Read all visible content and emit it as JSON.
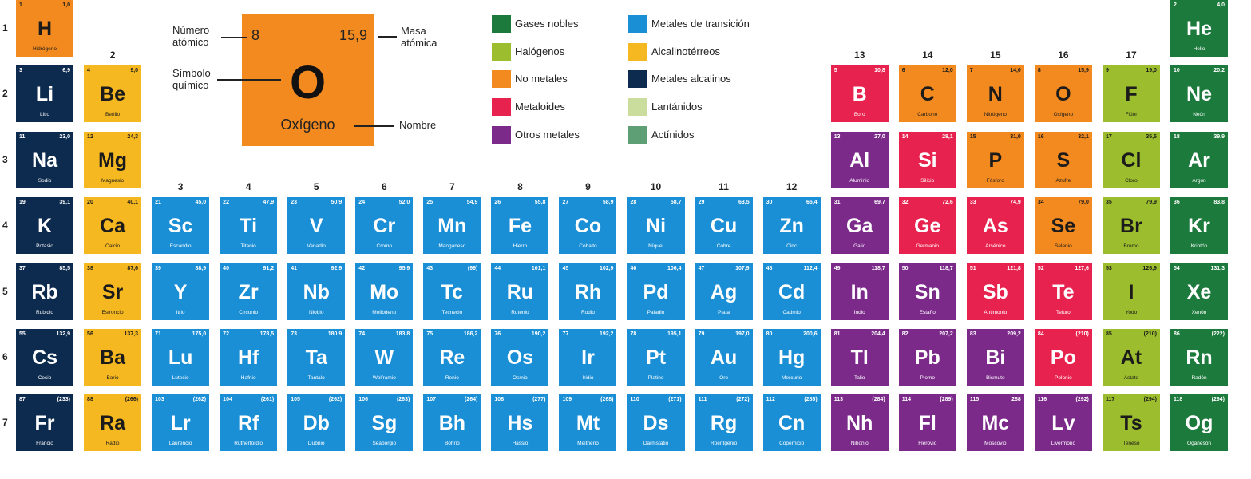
{
  "key": {
    "number": "8",
    "mass": "15,9",
    "symbol": "O",
    "name": "Oxígeno",
    "color": "#f28a20",
    "number_label": [
      "Número",
      "atómico"
    ],
    "symbol_label": [
      "Símbolo",
      "químico"
    ],
    "mass_label": [
      "Masa",
      "atómica"
    ],
    "name_label": "Nombre"
  },
  "legend": [
    {
      "name": "Gases nobles",
      "color": "#1b7a3c"
    },
    {
      "name": "Halógenos",
      "color": "#9cbd2e"
    },
    {
      "name": "No metales",
      "color": "#f28a20"
    },
    {
      "name": "Metaloides",
      "color": "#e8224e"
    },
    {
      "name": "Otros metales",
      "color": "#7b2a8a"
    },
    {
      "name": "Metales de transición",
      "color": "#1a8fd6"
    },
    {
      "name": "Alcalinotérreos",
      "color": "#f6b820"
    },
    {
      "name": "Metales alcalinos",
      "color": "#0d2b4f"
    },
    {
      "name": "Lantánidos",
      "color": "#cadd9c"
    },
    {
      "name": "Actínidos",
      "color": "#5e9f76"
    }
  ],
  "groups": [
    null,
    "2",
    "3",
    "4",
    "5",
    "6",
    "7",
    "8",
    "9",
    "10",
    "11",
    "12",
    "13",
    "14",
    "15",
    "16",
    "17",
    null
  ],
  "periods": [
    "1",
    "2",
    "3",
    "4",
    "5",
    "6",
    "7"
  ],
  "rows": [
    [
      {
        "number": 1,
        "mass": "1,0",
        "symbol": "H",
        "name": "Hidrógeno",
        "color": "#f28a20"
      },
      null,
      null,
      null,
      null,
      null,
      null,
      null,
      null,
      null,
      null,
      null,
      null,
      null,
      null,
      null,
      null,
      {
        "number": 2,
        "mass": "4,0",
        "symbol": "He",
        "name": "Helio",
        "color": "#1b7a3c"
      }
    ],
    [
      {
        "number": 3,
        "mass": "6,9",
        "symbol": "Li",
        "name": "Litio",
        "color": "#0d2b4f"
      },
      {
        "number": 4,
        "mass": "9,0",
        "symbol": "Be",
        "name": "Berilio",
        "color": "#f6b820"
      },
      null,
      null,
      null,
      null,
      null,
      null,
      null,
      null,
      null,
      null,
      {
        "number": 5,
        "mass": "10,8",
        "symbol": "B",
        "name": "Boro",
        "color": "#e8224e"
      },
      {
        "number": 6,
        "mass": "12,0",
        "symbol": "C",
        "name": "Carbono",
        "color": "#f28a20"
      },
      {
        "number": 7,
        "mass": "14,0",
        "symbol": "N",
        "name": "Nitrógeno",
        "color": "#f28a20"
      },
      {
        "number": 8,
        "mass": "15,9",
        "symbol": "O",
        "name": "Oxígeno",
        "color": "#f28a20"
      },
      {
        "number": 9,
        "mass": "19,0",
        "symbol": "F",
        "name": "Flúor",
        "color": "#9cbd2e"
      },
      {
        "number": 10,
        "mass": "20,2",
        "symbol": "Ne",
        "name": "Neón",
        "color": "#1b7a3c"
      }
    ],
    [
      {
        "number": 11,
        "mass": "23,0",
        "symbol": "Na",
        "name": "Sodio",
        "color": "#0d2b4f"
      },
      {
        "number": 12,
        "mass": "24,3",
        "symbol": "Mg",
        "name": "Magnesio",
        "color": "#f6b820"
      },
      null,
      null,
      null,
      null,
      null,
      null,
      null,
      null,
      null,
      null,
      {
        "number": 13,
        "mass": "27,0",
        "symbol": "Al",
        "name": "Aluminio",
        "color": "#7b2a8a"
      },
      {
        "number": 14,
        "mass": "28,1",
        "symbol": "Si",
        "name": "Silicio",
        "color": "#e8224e"
      },
      {
        "number": 15,
        "mass": "31,0",
        "symbol": "P",
        "name": "Fósforo",
        "color": "#f28a20"
      },
      {
        "number": 16,
        "mass": "32,1",
        "symbol": "S",
        "name": "Azufre",
        "color": "#f28a20"
      },
      {
        "number": 17,
        "mass": "35,5",
        "symbol": "Cl",
        "name": "Cloro",
        "color": "#9cbd2e"
      },
      {
        "number": 18,
        "mass": "39,9",
        "symbol": "Ar",
        "name": "Argón",
        "color": "#1b7a3c"
      }
    ],
    [
      {
        "number": 19,
        "mass": "39,1",
        "symbol": "K",
        "name": "Potasio",
        "color": "#0d2b4f"
      },
      {
        "number": 20,
        "mass": "40,1",
        "symbol": "Ca",
        "name": "Calcio",
        "color": "#f6b820"
      },
      {
        "number": 21,
        "mass": "45,0",
        "symbol": "Sc",
        "name": "Escandio",
        "color": "#1a8fd6"
      },
      {
        "number": 22,
        "mass": "47,9",
        "symbol": "Ti",
        "name": "Titanio",
        "color": "#1a8fd6"
      },
      {
        "number": 23,
        "mass": "50,9",
        "symbol": "V",
        "name": "Vanadio",
        "color": "#1a8fd6"
      },
      {
        "number": 24,
        "mass": "52,0",
        "symbol": "Cr",
        "name": "Cromo",
        "color": "#1a8fd6"
      },
      {
        "number": 25,
        "mass": "54,9",
        "symbol": "Mn",
        "name": "Manganeso",
        "color": "#1a8fd6"
      },
      {
        "number": 26,
        "mass": "55,8",
        "symbol": "Fe",
        "name": "Hierro",
        "color": "#1a8fd6"
      },
      {
        "number": 27,
        "mass": "58,9",
        "symbol": "Co",
        "name": "Cobalto",
        "color": "#1a8fd6"
      },
      {
        "number": 28,
        "mass": "58,7",
        "symbol": "Ni",
        "name": "Níquel",
        "color": "#1a8fd6"
      },
      {
        "number": 29,
        "mass": "63,5",
        "symbol": "Cu",
        "name": "Cobre",
        "color": "#1a8fd6"
      },
      {
        "number": 30,
        "mass": "65,4",
        "symbol": "Zn",
        "name": "Cinc",
        "color": "#1a8fd6"
      },
      {
        "number": 31,
        "mass": "69,7",
        "symbol": "Ga",
        "name": "Galio",
        "color": "#7b2a8a"
      },
      {
        "number": 32,
        "mass": "72,6",
        "symbol": "Ge",
        "name": "Germanio",
        "color": "#e8224e"
      },
      {
        "number": 33,
        "mass": "74,9",
        "symbol": "As",
        "name": "Arsénico",
        "color": "#e8224e"
      },
      {
        "number": 34,
        "mass": "79,0",
        "symbol": "Se",
        "name": "Selenio",
        "color": "#f28a20"
      },
      {
        "number": 35,
        "mass": "79,9",
        "symbol": "Br",
        "name": "Bromo",
        "color": "#9cbd2e"
      },
      {
        "number": 36,
        "mass": "83,8",
        "symbol": "Kr",
        "name": "Kriptón",
        "color": "#1b7a3c"
      }
    ],
    [
      {
        "number": 37,
        "mass": "85,5",
        "symbol": "Rb",
        "name": "Rubidio",
        "color": "#0d2b4f"
      },
      {
        "number": 38,
        "mass": "87,6",
        "symbol": "Sr",
        "name": "Estroncio",
        "color": "#f6b820"
      },
      {
        "number": 39,
        "mass": "88,9",
        "symbol": "Y",
        "name": "Itrio",
        "color": "#1a8fd6"
      },
      {
        "number": 40,
        "mass": "91,2",
        "symbol": "Zr",
        "name": "Circonio",
        "color": "#1a8fd6"
      },
      {
        "number": 41,
        "mass": "92,9",
        "symbol": "Nb",
        "name": "Niobio",
        "color": "#1a8fd6"
      },
      {
        "number": 42,
        "mass": "95,9",
        "symbol": "Mo",
        "name": "Molibdeno",
        "color": "#1a8fd6"
      },
      {
        "number": 43,
        "mass": "(99)",
        "symbol": "Tc",
        "name": "Tecnecio",
        "color": "#1a8fd6"
      },
      {
        "number": 44,
        "mass": "101,1",
        "symbol": "Ru",
        "name": "Rutenio",
        "color": "#1a8fd6"
      },
      {
        "number": 45,
        "mass": "102,9",
        "symbol": "Rh",
        "name": "Rodio",
        "color": "#1a8fd6"
      },
      {
        "number": 46,
        "mass": "106,4",
        "symbol": "Pd",
        "name": "Paladio",
        "color": "#1a8fd6"
      },
      {
        "number": 47,
        "mass": "107,9",
        "symbol": "Ag",
        "name": "Plata",
        "color": "#1a8fd6"
      },
      {
        "number": 48,
        "mass": "112,4",
        "symbol": "Cd",
        "name": "Cadmio",
        "color": "#1a8fd6"
      },
      {
        "number": 49,
        "mass": "118,7",
        "symbol": "In",
        "name": "Indio",
        "color": "#7b2a8a"
      },
      {
        "number": 50,
        "mass": "118,7",
        "symbol": "Sn",
        "name": "Estaño",
        "color": "#7b2a8a"
      },
      {
        "number": 51,
        "mass": "121,8",
        "symbol": "Sb",
        "name": "Antimonio",
        "color": "#e8224e"
      },
      {
        "number": 52,
        "mass": "127,6",
        "symbol": "Te",
        "name": "Teluro",
        "color": "#e8224e"
      },
      {
        "number": 53,
        "mass": "126,9",
        "symbol": "I",
        "name": "Yodo",
        "color": "#9cbd2e"
      },
      {
        "number": 54,
        "mass": "131,3",
        "symbol": "Xe",
        "name": "Xenón",
        "color": "#1b7a3c"
      }
    ],
    [
      {
        "number": 55,
        "mass": "132,9",
        "symbol": "Cs",
        "name": "Cesio",
        "color": "#0d2b4f"
      },
      {
        "number": 56,
        "mass": "137,3",
        "symbol": "Ba",
        "name": "Bario",
        "color": "#f6b820"
      },
      {
        "number": 71,
        "mass": "175,0",
        "symbol": "Lu",
        "name": "Lutecio",
        "color": "#1a8fd6"
      },
      {
        "number": 72,
        "mass": "178,5",
        "symbol": "Hf",
        "name": "Hafnio",
        "color": "#1a8fd6"
      },
      {
        "number": 73,
        "mass": "180,9",
        "symbol": "Ta",
        "name": "Tantalo",
        "color": "#1a8fd6"
      },
      {
        "number": 74,
        "mass": "183,8",
        "symbol": "W",
        "name": "Wolframio",
        "color": "#1a8fd6"
      },
      {
        "number": 75,
        "mass": "186,2",
        "symbol": "Re",
        "name": "Renio",
        "color": "#1a8fd6"
      },
      {
        "number": 76,
        "mass": "190,2",
        "symbol": "Os",
        "name": "Osmio",
        "color": "#1a8fd6"
      },
      {
        "number": 77,
        "mass": "192,2",
        "symbol": "Ir",
        "name": "Iridio",
        "color": "#1a8fd6"
      },
      {
        "number": 78,
        "mass": "195,1",
        "symbol": "Pt",
        "name": "Platino",
        "color": "#1a8fd6"
      },
      {
        "number": 79,
        "mass": "197,0",
        "symbol": "Au",
        "name": "Oro",
        "color": "#1a8fd6"
      },
      {
        "number": 80,
        "mass": "200,6",
        "symbol": "Hg",
        "name": "Mercurio",
        "color": "#1a8fd6"
      },
      {
        "number": 81,
        "mass": "204,4",
        "symbol": "Tl",
        "name": "Talio",
        "color": "#7b2a8a"
      },
      {
        "number": 82,
        "mass": "207,2",
        "symbol": "Pb",
        "name": "Plomo",
        "color": "#7b2a8a"
      },
      {
        "number": 83,
        "mass": "209,2",
        "symbol": "Bi",
        "name": "Bismuto",
        "color": "#7b2a8a"
      },
      {
        "number": 84,
        "mass": "(210)",
        "symbol": "Po",
        "name": "Polonio",
        "color": "#e8224e"
      },
      {
        "number": 85,
        "mass": "(210)",
        "symbol": "At",
        "name": "Astato",
        "color": "#9cbd2e"
      },
      {
        "number": 86,
        "mass": "(222)",
        "symbol": "Rn",
        "name": "Radón",
        "color": "#1b7a3c"
      }
    ],
    [
      {
        "number": 87,
        "mass": "(233)",
        "symbol": "Fr",
        "name": "Francio",
        "color": "#0d2b4f"
      },
      {
        "number": 88,
        "mass": "(266)",
        "symbol": "Ra",
        "name": "Radio",
        "color": "#f6b820"
      },
      {
        "number": 103,
        "mass": "(262)",
        "symbol": "Lr",
        "name": "Laurencio",
        "color": "#1a8fd6"
      },
      {
        "number": 104,
        "mass": "(261)",
        "symbol": "Rf",
        "name": "Rutherfordio",
        "color": "#1a8fd6"
      },
      {
        "number": 105,
        "mass": "(262)",
        "symbol": "Db",
        "name": "Dubnio",
        "color": "#1a8fd6"
      },
      {
        "number": 106,
        "mass": "(263)",
        "symbol": "Sg",
        "name": "Seaborgio",
        "color": "#1a8fd6"
      },
      {
        "number": 107,
        "mass": "(264)",
        "symbol": "Bh",
        "name": "Bohrio",
        "color": "#1a8fd6"
      },
      {
        "number": 108,
        "mass": "(277)",
        "symbol": "Hs",
        "name": "Hassio",
        "color": "#1a8fd6"
      },
      {
        "number": 109,
        "mass": "(268)",
        "symbol": "Mt",
        "name": "Meitnerio",
        "color": "#1a8fd6"
      },
      {
        "number": 110,
        "mass": "(271)",
        "symbol": "Ds",
        "name": "Darmstatio",
        "color": "#1a8fd6"
      },
      {
        "number": 111,
        "mass": "(272)",
        "symbol": "Rg",
        "name": "Roentgenio",
        "color": "#1a8fd6"
      },
      {
        "number": 112,
        "mass": "(285)",
        "symbol": "Cn",
        "name": "Copernicio",
        "color": "#1a8fd6"
      },
      {
        "number": 113,
        "mass": "(284)",
        "symbol": "Nh",
        "name": "Nihonio",
        "color": "#7b2a8a"
      },
      {
        "number": 114,
        "mass": "(289)",
        "symbol": "Fl",
        "name": "Flerovio",
        "color": "#7b2a8a"
      },
      {
        "number": 115,
        "mass": "288",
        "symbol": "Mc",
        "name": "Moscovio",
        "color": "#7b2a8a"
      },
      {
        "number": 116,
        "mass": "(292)",
        "symbol": "Lv",
        "name": "Livermorio",
        "color": "#7b2a8a"
      },
      {
        "number": 117,
        "mass": "(294)",
        "symbol": "Ts",
        "name": "Teneso",
        "color": "#9cbd2e"
      },
      {
        "number": 118,
        "mass": "(294)",
        "symbol": "Og",
        "name": "Oganesón",
        "color": "#1b7a3c"
      }
    ]
  ]
}
